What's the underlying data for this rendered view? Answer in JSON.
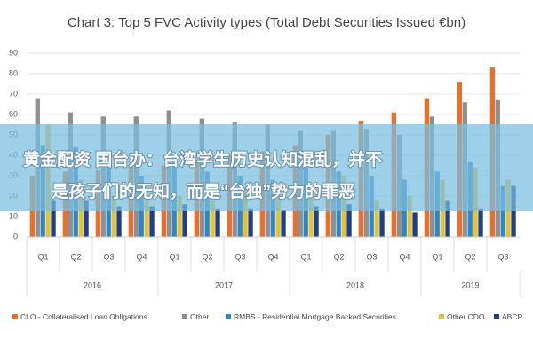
{
  "chart_data": {
    "type": "bar",
    "title": "Chart 3: Top 5 FVC Activity types (Total Debt Securities Issued €bn)",
    "categories": [
      "Q1",
      "Q2",
      "Q3",
      "Q4",
      "Q1",
      "Q2",
      "Q3",
      "Q4",
      "Q1",
      "Q2",
      "Q3",
      "Q4",
      "Q1",
      "Q2",
      "Q3"
    ],
    "category_groups": [
      "2016",
      "2017",
      "2018",
      "2019"
    ],
    "series": [
      {
        "name": "CLO - Collateralised Loan Obligations",
        "color": "#e8702a",
        "values": [
          30,
          32,
          33,
          35,
          35,
          38,
          40,
          42,
          45,
          50,
          57,
          61,
          68,
          76,
          83
        ]
      },
      {
        "name": "Other",
        "color": "#8f8f8f",
        "values": [
          68,
          61,
          59,
          59,
          62,
          58,
          56,
          55,
          52,
          52,
          53,
          50,
          59,
          66,
          67
        ]
      },
      {
        "name": "RMBS - Residential Mortgage Backed Securities",
        "color": "#2f86c6",
        "values": [
          45,
          44,
          35,
          30,
          38,
          32,
          30,
          28,
          35,
          32,
          30,
          28,
          32,
          37,
          25
        ]
      },
      {
        "name": "Other CDO",
        "color": "#e3c23a",
        "values": [
          55,
          28,
          20,
          22,
          20,
          18,
          22,
          20,
          25,
          30,
          18,
          20,
          28,
          34,
          28
        ]
      },
      {
        "name": "ABCP",
        "color": "#1f3f86",
        "values": [
          18,
          18,
          15,
          15,
          16,
          14,
          14,
          13,
          15,
          16,
          14,
          12,
          18,
          14,
          25
        ]
      }
    ],
    "ylim": [
      0,
      90
    ],
    "yticks": [
      0,
      10,
      20,
      30,
      40,
      50,
      60,
      70,
      80,
      90
    ],
    "grid": true
  },
  "banner": {
    "lines": [
      "黄金配资 国台办：台湾学生历史认知混乱，并不",
      "是孩子们的无知，而是“台独”势力的罪恶"
    ]
  }
}
